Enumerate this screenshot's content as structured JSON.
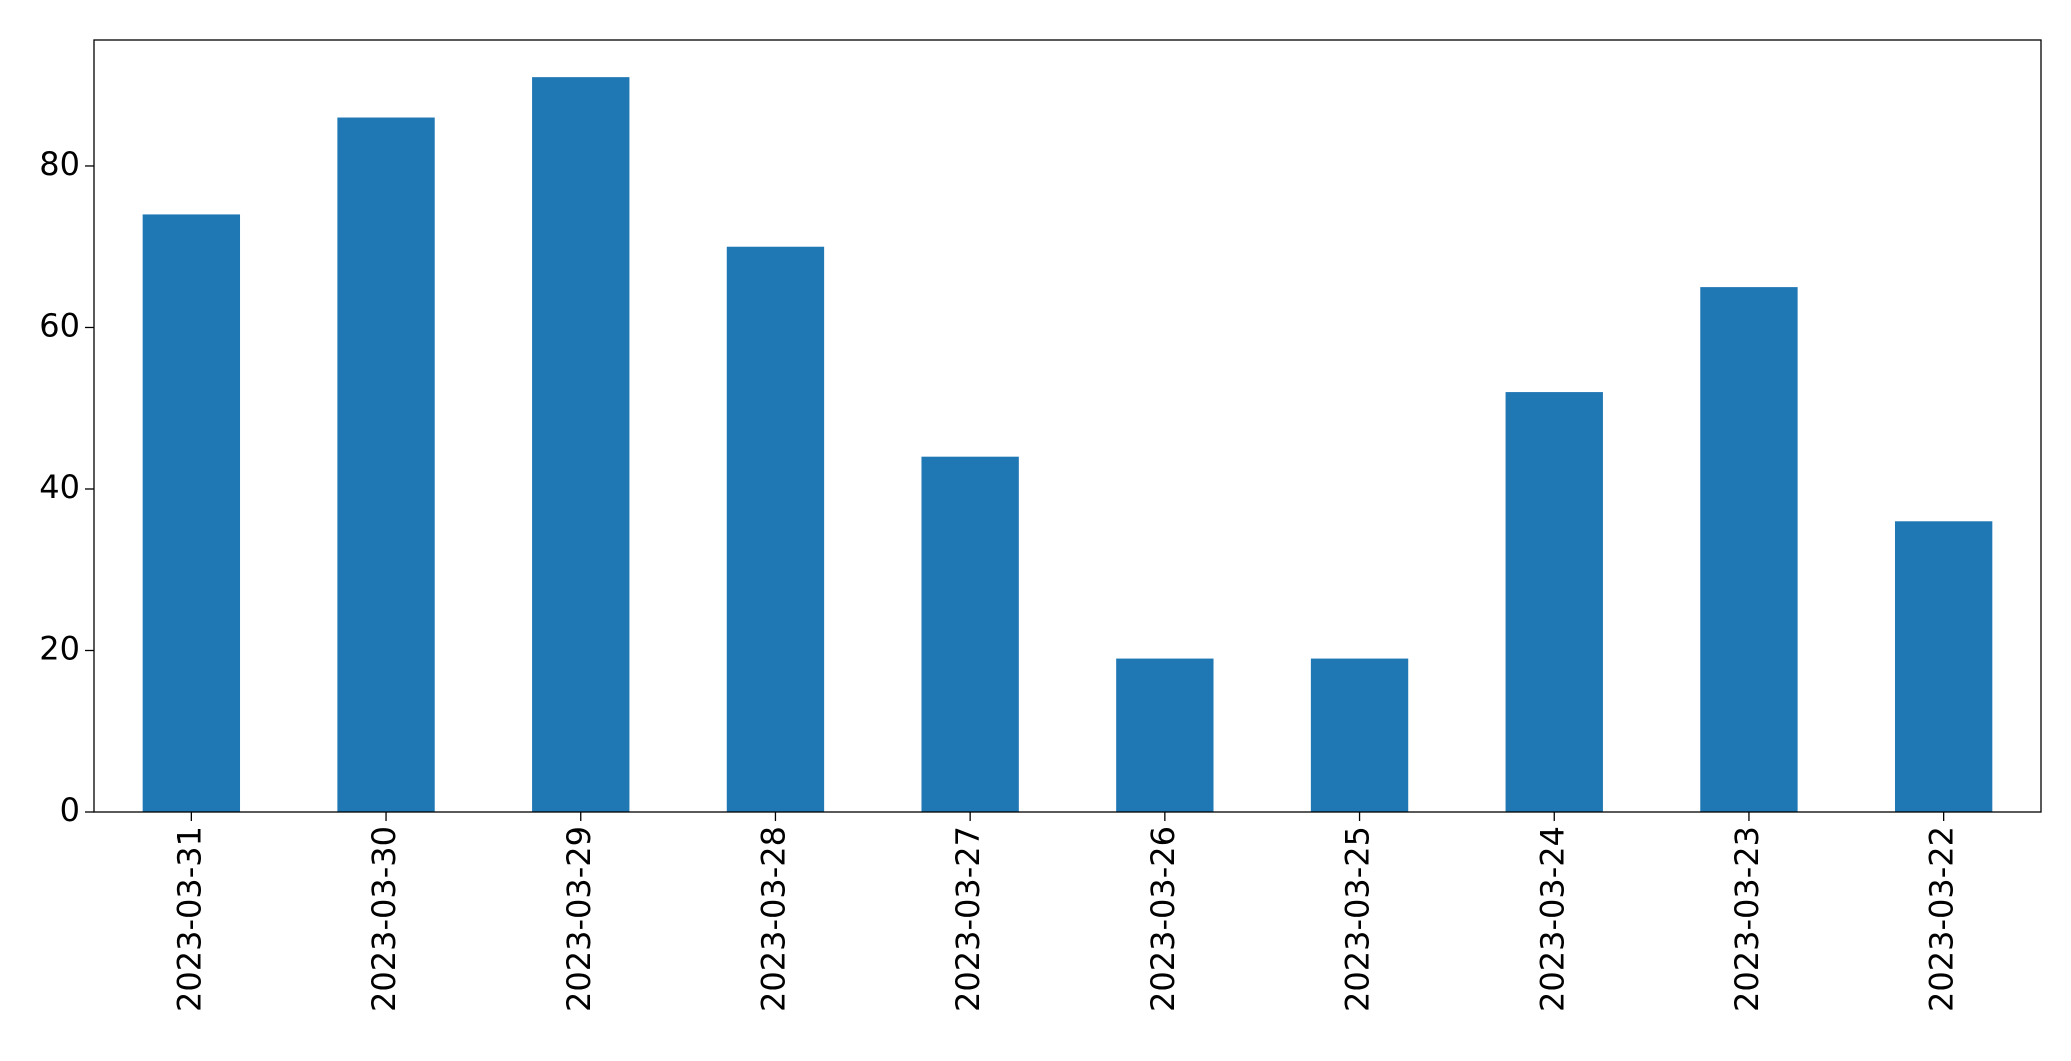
{
  "chart_data": {
    "type": "bar",
    "categories": [
      "2023-03-31",
      "2023-03-30",
      "2023-03-29",
      "2023-03-28",
      "2023-03-27",
      "2023-03-26",
      "2023-03-25",
      "2023-03-24",
      "2023-03-23",
      "2023-03-22"
    ],
    "values": [
      74,
      86,
      91,
      70,
      44,
      19,
      19,
      52,
      65,
      36
    ],
    "color": "#1f77b4",
    "ylim": [
      0,
      95.6
    ],
    "yticks": [
      0,
      20,
      40,
      60,
      80
    ],
    "grid": false
  }
}
